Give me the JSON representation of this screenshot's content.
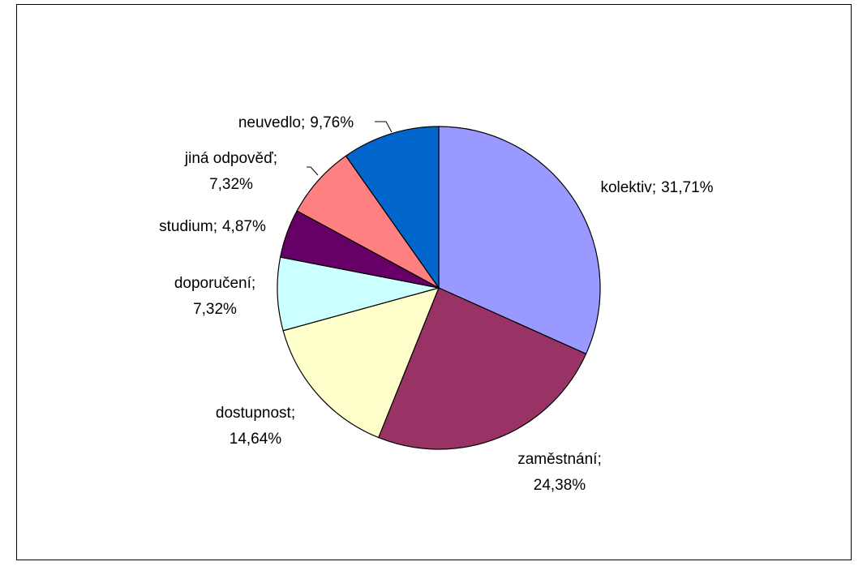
{
  "chart_data": {
    "type": "pie",
    "categories": [
      "kolektiv",
      "zaměstnání",
      "dostupnost",
      "doporučení",
      "studium",
      "jiná odpověď",
      "neuvedlo"
    ],
    "label_separator": ";",
    "values": [
      31.71,
      24.38,
      14.64,
      7.32,
      4.87,
      7.32,
      9.76
    ],
    "value_labels": [
      "31,71%",
      "24,38%",
      "14,64%",
      "7,32%",
      "4,87%",
      "7,32%",
      "9,76%"
    ],
    "colors": [
      "#9999ff",
      "#993366",
      "#ffffcc",
      "#ccffff",
      "#660066",
      "#ff8080",
      "#0066cc"
    ]
  }
}
